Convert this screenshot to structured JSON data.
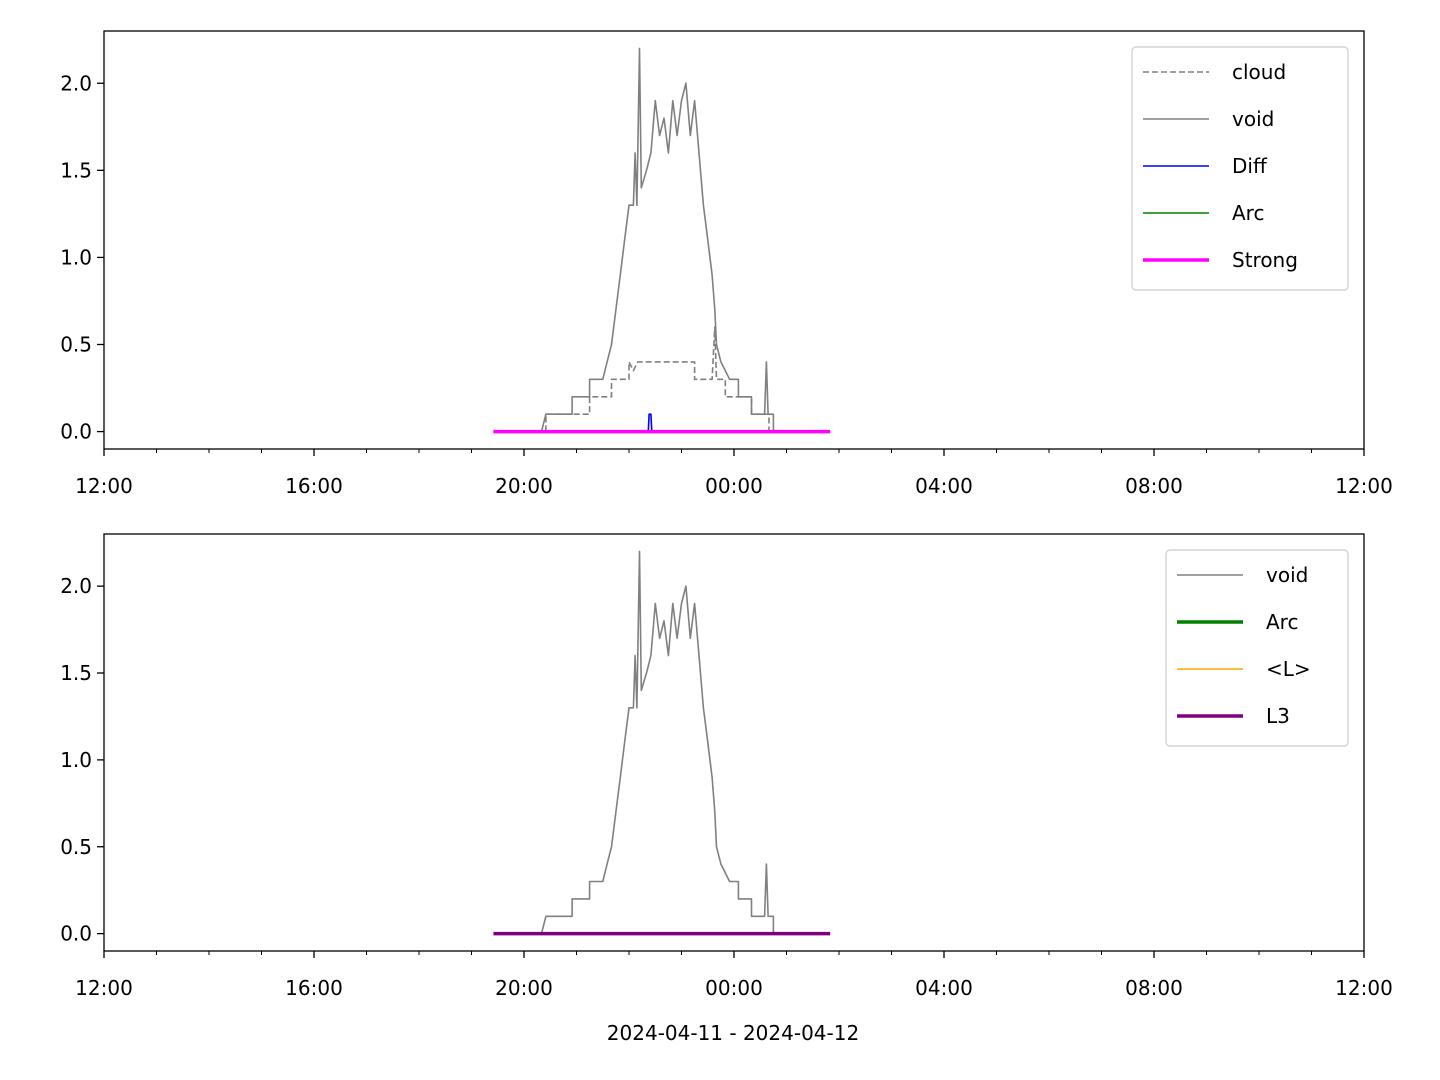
{
  "xlabel": "2024-04-11 - 2024-04-12",
  "chart_data": [
    {
      "type": "line",
      "x_range": [
        "2024-04-11 12:00",
        "2024-04-12 12:00"
      ],
      "ylim": [
        -0.1,
        2.3
      ],
      "x_ticks": [
        "12:00",
        "16:00",
        "20:00",
        "00:00",
        "04:00",
        "08:00",
        "12:00"
      ],
      "y_ticks": [
        "0.0",
        "0.5",
        "1.0",
        "1.5",
        "2.0"
      ],
      "grid": false,
      "legend_position": "top-right",
      "series": [
        {
          "name": "cloud",
          "color": "#808080",
          "style": "dashed",
          "points": [
            [
              "2024-04-11 20:15",
              0.0
            ],
            [
              "2024-04-11 20:25",
              0.0
            ],
            [
              "2024-04-11 20:25",
              0.1
            ],
            [
              "2024-04-11 21:15",
              0.1
            ],
            [
              "2024-04-11 21:15",
              0.2
            ],
            [
              "2024-04-11 21:40",
              0.2
            ],
            [
              "2024-04-11 21:40",
              0.3
            ],
            [
              "2024-04-11 22:00",
              0.3
            ],
            [
              "2024-04-11 22:00",
              0.4
            ],
            [
              "2024-04-11 22:05",
              0.35
            ],
            [
              "2024-04-11 22:10",
              0.4
            ],
            [
              "2024-04-11 23:15",
              0.4
            ],
            [
              "2024-04-11 23:15",
              0.3
            ],
            [
              "2024-04-11 23:35",
              0.3
            ],
            [
              "2024-04-11 23:38",
              0.6
            ],
            [
              "2024-04-11 23:40",
              0.3
            ],
            [
              "2024-04-11 23:50",
              0.3
            ],
            [
              "2024-04-11 23:50",
              0.2
            ],
            [
              "2024-04-12 00:20",
              0.2
            ],
            [
              "2024-04-12 00:20",
              0.1
            ],
            [
              "2024-04-12 00:40",
              0.1
            ],
            [
              "2024-04-12 00:40",
              0.0
            ],
            [
              "2024-04-12 00:45",
              0.0
            ]
          ]
        },
        {
          "name": "void",
          "color": "#808080",
          "style": "solid",
          "points": [
            [
              "2024-04-11 20:20",
              0.0
            ],
            [
              "2024-04-11 20:25",
              0.1
            ],
            [
              "2024-04-11 20:55",
              0.1
            ],
            [
              "2024-04-11 20:55",
              0.2
            ],
            [
              "2024-04-11 21:15",
              0.2
            ],
            [
              "2024-04-11 21:15",
              0.3
            ],
            [
              "2024-04-11 21:30",
              0.3
            ],
            [
              "2024-04-11 21:35",
              0.4
            ],
            [
              "2024-04-11 21:40",
              0.5
            ],
            [
              "2024-04-11 21:45",
              0.7
            ],
            [
              "2024-04-11 21:50",
              0.9
            ],
            [
              "2024-04-11 21:55",
              1.1
            ],
            [
              "2024-04-11 22:00",
              1.3
            ],
            [
              "2024-04-11 22:05",
              1.3
            ],
            [
              "2024-04-11 22:07",
              1.6
            ],
            [
              "2024-04-11 22:09",
              1.3
            ],
            [
              "2024-04-11 22:12",
              2.2
            ],
            [
              "2024-04-11 22:14",
              1.4
            ],
            [
              "2024-04-11 22:20",
              1.5
            ],
            [
              "2024-04-11 22:25",
              1.6
            ],
            [
              "2024-04-11 22:30",
              1.9
            ],
            [
              "2024-04-11 22:35",
              1.7
            ],
            [
              "2024-04-11 22:40",
              1.8
            ],
            [
              "2024-04-11 22:45",
              1.6
            ],
            [
              "2024-04-11 22:50",
              1.9
            ],
            [
              "2024-04-11 22:55",
              1.7
            ],
            [
              "2024-04-11 23:00",
              1.9
            ],
            [
              "2024-04-11 23:05",
              2.0
            ],
            [
              "2024-04-11 23:10",
              1.7
            ],
            [
              "2024-04-11 23:15",
              1.9
            ],
            [
              "2024-04-11 23:20",
              1.6
            ],
            [
              "2024-04-11 23:25",
              1.3
            ],
            [
              "2024-04-11 23:30",
              1.1
            ],
            [
              "2024-04-11 23:35",
              0.9
            ],
            [
              "2024-04-11 23:38",
              0.7
            ],
            [
              "2024-04-11 23:40",
              0.5
            ],
            [
              "2024-04-11 23:45",
              0.4
            ],
            [
              "2024-04-11 23:55",
              0.3
            ],
            [
              "2024-04-12 00:05",
              0.3
            ],
            [
              "2024-04-12 00:05",
              0.2
            ],
            [
              "2024-04-12 00:20",
              0.2
            ],
            [
              "2024-04-12 00:20",
              0.1
            ],
            [
              "2024-04-12 00:35",
              0.1
            ],
            [
              "2024-04-12 00:37",
              0.4
            ],
            [
              "2024-04-12 00:39",
              0.1
            ],
            [
              "2024-04-12 00:45",
              0.1
            ],
            [
              "2024-04-12 00:45",
              0.0
            ]
          ]
        },
        {
          "name": "Diff",
          "color": "#0000ff",
          "style": "solid",
          "points": [
            [
              "2024-04-11 22:22",
              0.0
            ],
            [
              "2024-04-11 22:23",
              0.1
            ],
            [
              "2024-04-11 22:25",
              0.1
            ],
            [
              "2024-04-11 22:26",
              0.0
            ]
          ]
        },
        {
          "name": "Arc",
          "color": "#008000",
          "style": "solid",
          "points": []
        },
        {
          "name": "Strong",
          "color": "#ff00ff",
          "style": "solid-thick",
          "points": [
            [
              "2024-04-11 19:25",
              0.0
            ],
            [
              "2024-04-12 01:50",
              0.0
            ]
          ]
        }
      ]
    },
    {
      "type": "line",
      "x_range": [
        "2024-04-11 12:00",
        "2024-04-12 12:00"
      ],
      "ylim": [
        -0.1,
        2.3
      ],
      "x_ticks": [
        "12:00",
        "16:00",
        "20:00",
        "00:00",
        "04:00",
        "08:00",
        "12:00"
      ],
      "y_ticks": [
        "0.0",
        "0.5",
        "1.0",
        "1.5",
        "2.0"
      ],
      "grid": false,
      "legend_position": "top-right",
      "series": [
        {
          "name": "void",
          "color": "#808080",
          "style": "solid",
          "points": [
            [
              "2024-04-11 20:20",
              0.0
            ],
            [
              "2024-04-11 20:25",
              0.1
            ],
            [
              "2024-04-11 20:55",
              0.1
            ],
            [
              "2024-04-11 20:55",
              0.2
            ],
            [
              "2024-04-11 21:15",
              0.2
            ],
            [
              "2024-04-11 21:15",
              0.3
            ],
            [
              "2024-04-11 21:30",
              0.3
            ],
            [
              "2024-04-11 21:35",
              0.4
            ],
            [
              "2024-04-11 21:40",
              0.5
            ],
            [
              "2024-04-11 21:45",
              0.7
            ],
            [
              "2024-04-11 21:50",
              0.9
            ],
            [
              "2024-04-11 21:55",
              1.1
            ],
            [
              "2024-04-11 22:00",
              1.3
            ],
            [
              "2024-04-11 22:05",
              1.3
            ],
            [
              "2024-04-11 22:07",
              1.6
            ],
            [
              "2024-04-11 22:09",
              1.3
            ],
            [
              "2024-04-11 22:12",
              2.2
            ],
            [
              "2024-04-11 22:14",
              1.4
            ],
            [
              "2024-04-11 22:20",
              1.5
            ],
            [
              "2024-04-11 22:25",
              1.6
            ],
            [
              "2024-04-11 22:30",
              1.9
            ],
            [
              "2024-04-11 22:35",
              1.7
            ],
            [
              "2024-04-11 22:40",
              1.8
            ],
            [
              "2024-04-11 22:45",
              1.6
            ],
            [
              "2024-04-11 22:50",
              1.9
            ],
            [
              "2024-04-11 22:55",
              1.7
            ],
            [
              "2024-04-11 23:00",
              1.9
            ],
            [
              "2024-04-11 23:05",
              2.0
            ],
            [
              "2024-04-11 23:10",
              1.7
            ],
            [
              "2024-04-11 23:15",
              1.9
            ],
            [
              "2024-04-11 23:20",
              1.6
            ],
            [
              "2024-04-11 23:25",
              1.3
            ],
            [
              "2024-04-11 23:30",
              1.1
            ],
            [
              "2024-04-11 23:35",
              0.9
            ],
            [
              "2024-04-11 23:38",
              0.7
            ],
            [
              "2024-04-11 23:40",
              0.5
            ],
            [
              "2024-04-11 23:45",
              0.4
            ],
            [
              "2024-04-11 23:55",
              0.3
            ],
            [
              "2024-04-12 00:05",
              0.3
            ],
            [
              "2024-04-12 00:05",
              0.2
            ],
            [
              "2024-04-12 00:20",
              0.2
            ],
            [
              "2024-04-12 00:20",
              0.1
            ],
            [
              "2024-04-12 00:35",
              0.1
            ],
            [
              "2024-04-12 00:37",
              0.4
            ],
            [
              "2024-04-12 00:39",
              0.1
            ],
            [
              "2024-04-12 00:45",
              0.1
            ],
            [
              "2024-04-12 00:45",
              0.0
            ]
          ]
        },
        {
          "name": "Arc",
          "color": "#008000",
          "style": "solid-thick",
          "points": []
        },
        {
          "name": "<L>",
          "color": "#ffa500",
          "style": "solid",
          "points": []
        },
        {
          "name": "L3",
          "color": "#800080",
          "style": "solid-thick",
          "points": [
            [
              "2024-04-11 19:25",
              0.0
            ],
            [
              "2024-04-12 01:50",
              0.0
            ]
          ]
        }
      ]
    }
  ]
}
